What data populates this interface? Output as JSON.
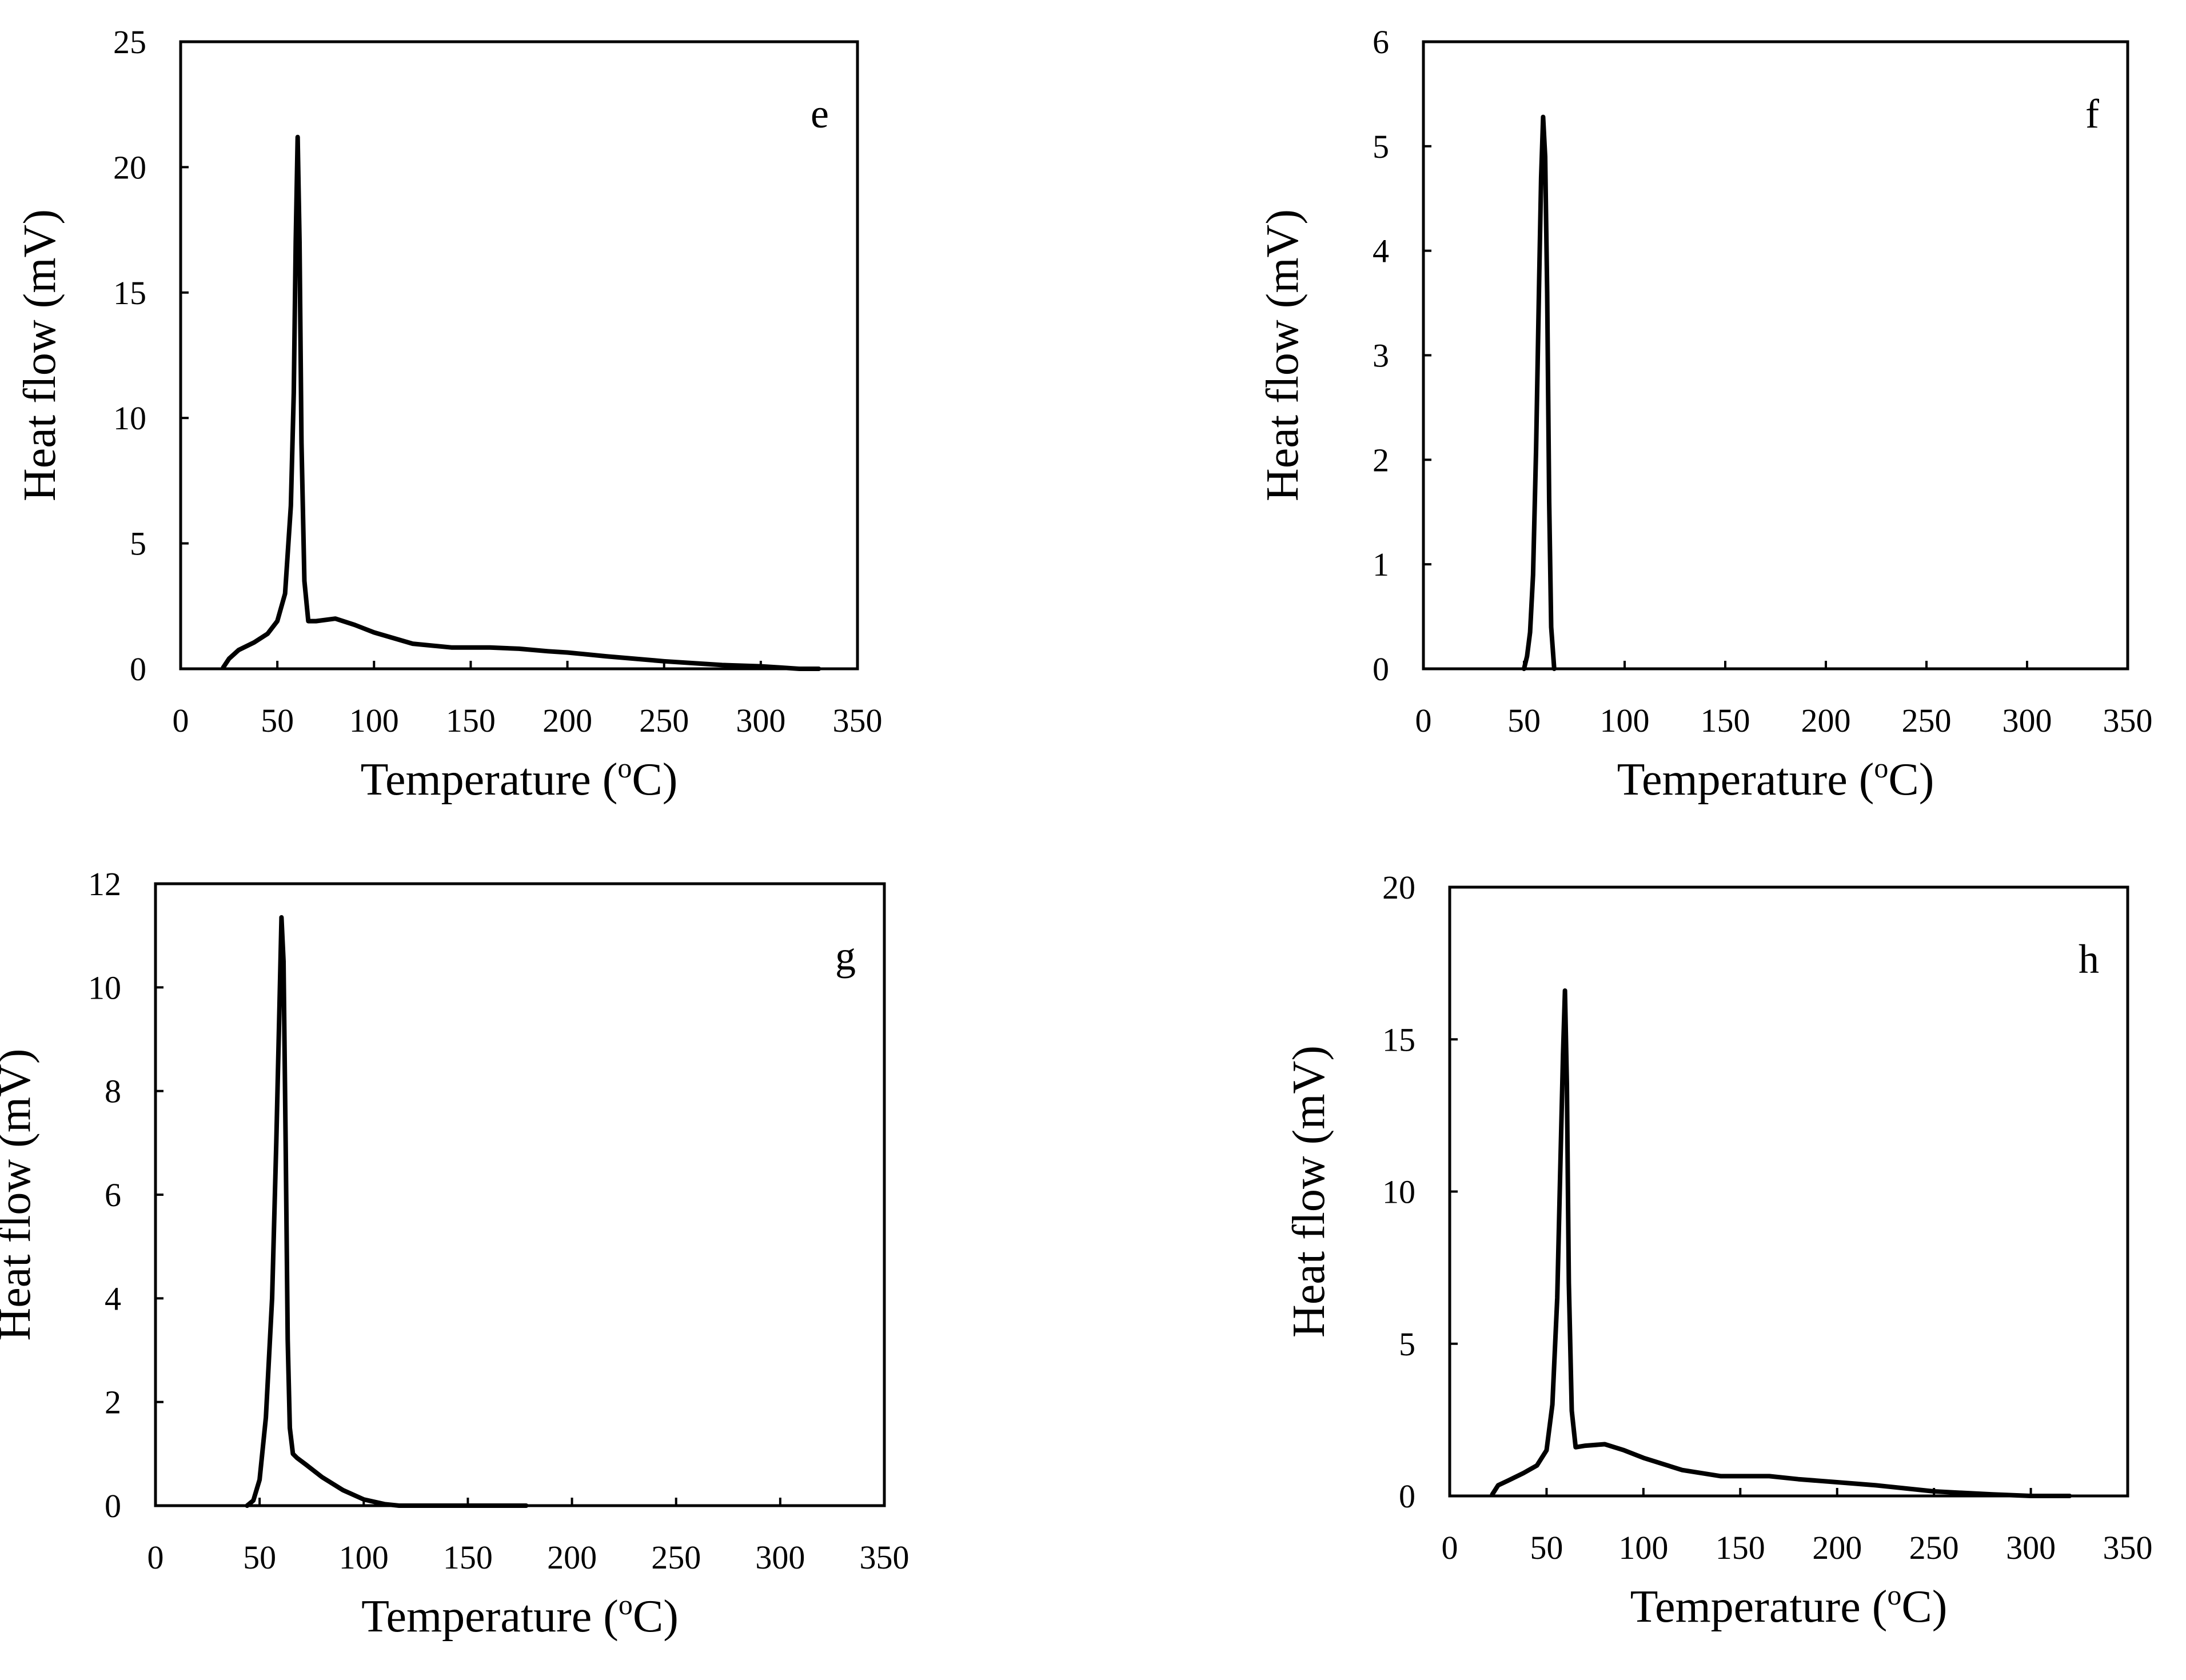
{
  "figure": {
    "line_color": "#000000",
    "background": "#ffffff"
  },
  "chart_data": [
    {
      "id": "e",
      "type": "line",
      "panel_label": "e",
      "xlabel": "Temperature (",
      "xlabel_sup": "o",
      "xlabel_end": "C)",
      "ylabel": "Heat flow (mV)",
      "xlim": [
        0,
        350
      ],
      "ylim": [
        0,
        25
      ],
      "xticks": [
        0,
        50,
        100,
        150,
        200,
        250,
        300,
        350
      ],
      "yticks": [
        0,
        5,
        10,
        15,
        20,
        25
      ],
      "series": [
        {
          "name": "e",
          "x": [
            22,
            25,
            30,
            38,
            45,
            50,
            54,
            57,
            58.5,
            59.5,
            60.5,
            61.5,
            62.5,
            64,
            66,
            70,
            80,
            90,
            100,
            120,
            140,
            160,
            175,
            190,
            200,
            220,
            250,
            280,
            300,
            310,
            320,
            330
          ],
          "y": [
            0.05,
            0.4,
            0.75,
            1.05,
            1.4,
            1.9,
            3.0,
            6.5,
            11.0,
            17.0,
            21.2,
            17.0,
            9.0,
            3.5,
            1.9,
            1.9,
            2.0,
            1.75,
            1.45,
            1.0,
            0.85,
            0.85,
            0.8,
            0.7,
            0.65,
            0.5,
            0.3,
            0.15,
            0.1,
            0.05,
            0.0,
            0.0
          ]
        }
      ]
    },
    {
      "id": "f",
      "type": "line",
      "panel_label": "f",
      "xlabel": "Temperature (",
      "xlabel_sup": "o",
      "xlabel_end": "C)",
      "ylabel": "Heat flow (mV)",
      "xlim": [
        0,
        350
      ],
      "ylim": [
        0,
        6
      ],
      "xticks": [
        0,
        50,
        100,
        150,
        200,
        250,
        300,
        350
      ],
      "yticks": [
        0,
        1,
        2,
        3,
        4,
        5,
        6
      ],
      "series": [
        {
          "name": "f",
          "x": [
            50,
            51.5,
            53,
            54.5,
            56,
            57.5,
            58.5,
            59.5,
            60.5,
            61.5,
            62.5,
            63.5,
            65
          ],
          "y": [
            0.0,
            0.12,
            0.35,
            0.9,
            2.1,
            3.7,
            4.7,
            5.28,
            4.9,
            3.6,
            1.6,
            0.4,
            0.0
          ]
        }
      ]
    },
    {
      "id": "g",
      "type": "line",
      "panel_label": "g",
      "xlabel": "Temperature (",
      "xlabel_sup": "o",
      "xlabel_end": "C)",
      "ylabel": "Heat flow (mV)",
      "xlim": [
        0,
        350
      ],
      "ylim": [
        0,
        12
      ],
      "xticks": [
        0,
        50,
        100,
        150,
        200,
        250,
        300,
        350
      ],
      "yticks": [
        0,
        2,
        4,
        6,
        8,
        10,
        12
      ],
      "series": [
        {
          "name": "g",
          "x": [
            44,
            47,
            50,
            53,
            56,
            58,
            59.5,
            60.5,
            61.5,
            62.5,
            63.5,
            64.5,
            66,
            68,
            72,
            80,
            90,
            100,
            110,
            117,
            125,
            150,
            178
          ],
          "y": [
            0.0,
            0.1,
            0.5,
            1.7,
            4.0,
            7.0,
            9.6,
            11.35,
            10.5,
            7.0,
            3.2,
            1.5,
            1.0,
            0.92,
            0.8,
            0.55,
            0.3,
            0.12,
            0.03,
            0.0,
            0.0,
            0.0,
            0.0
          ]
        }
      ]
    },
    {
      "id": "h",
      "type": "line",
      "panel_label": "h",
      "xlabel": "Temperature (",
      "xlabel_sup": "o",
      "xlabel_end": "C)",
      "ylabel": "Heat flow (mV)",
      "xlim": [
        0,
        350
      ],
      "ylim": [
        0,
        20
      ],
      "xticks": [
        0,
        50,
        100,
        150,
        200,
        250,
        300,
        350
      ],
      "yticks": [
        0,
        5,
        10,
        15,
        20
      ],
      "series": [
        {
          "name": "h",
          "x": [
            22,
            25,
            30,
            38,
            45,
            50,
            53,
            55.5,
            57,
            58.5,
            59.5,
            60.5,
            61.5,
            63,
            65,
            70,
            80,
            90,
            100,
            120,
            140,
            165,
            180,
            200,
            220,
            250,
            280,
            300,
            310,
            320
          ],
          "y": [
            0.05,
            0.35,
            0.5,
            0.75,
            1.0,
            1.5,
            3.0,
            6.5,
            10.5,
            14.5,
            16.6,
            13.5,
            7.0,
            2.8,
            1.6,
            1.65,
            1.7,
            1.5,
            1.25,
            0.85,
            0.65,
            0.65,
            0.55,
            0.45,
            0.35,
            0.15,
            0.05,
            0.0,
            0.0,
            0.0
          ]
        }
      ]
    }
  ]
}
